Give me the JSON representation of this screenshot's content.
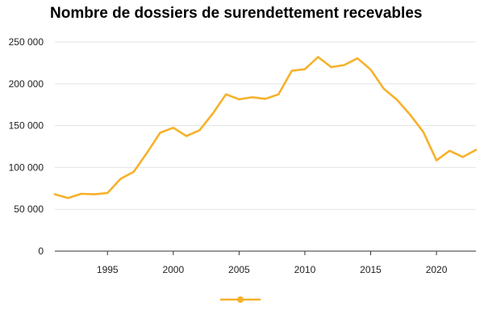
{
  "chart_data": {
    "type": "line",
    "title": "Nombre de dossiers de surendettement recevables",
    "xlabel": "",
    "ylabel": "",
    "xlim": [
      1991,
      2023
    ],
    "ylim": [
      0,
      250000
    ],
    "x_ticks": [
      1995,
      2000,
      2005,
      2010,
      2015,
      2020
    ],
    "y_ticks": [
      0,
      50000,
      100000,
      150000,
      200000,
      250000
    ],
    "x_tick_labels": [
      "1995",
      "2000",
      "2005",
      "2010",
      "2015",
      "2020"
    ],
    "y_tick_labels": [
      "0",
      "50 000",
      "100 000",
      "150 000",
      "200 000",
      "250 000"
    ],
    "grid": "horizontal",
    "legend": "bottom-center",
    "colors": {
      "line": "#f7b12a",
      "grid": "#e3e3e3",
      "axis": "#333333"
    },
    "series": [
      {
        "x": [
          1991,
          1992,
          1993,
          1994,
          1995,
          1996,
          1997,
          1998,
          1999,
          2000,
          2001,
          2002,
          2003,
          2004,
          2005,
          2006,
          2007,
          2008,
          2009,
          2010,
          2011,
          2012,
          2013,
          2014,
          2015,
          2016,
          2017,
          2018,
          2019,
          2020,
          2021,
          2022,
          2023
        ],
        "values": [
          68000,
          63500,
          68500,
          68000,
          69500,
          86500,
          95000,
          117500,
          141500,
          147500,
          137500,
          144500,
          164500,
          187500,
          181500,
          184000,
          182000,
          187500,
          215500,
          217500,
          232000,
          220000,
          222500,
          230500,
          217000,
          194000,
          181000,
          163000,
          142500,
          108500,
          120000,
          112500,
          121000
        ]
      }
    ]
  }
}
